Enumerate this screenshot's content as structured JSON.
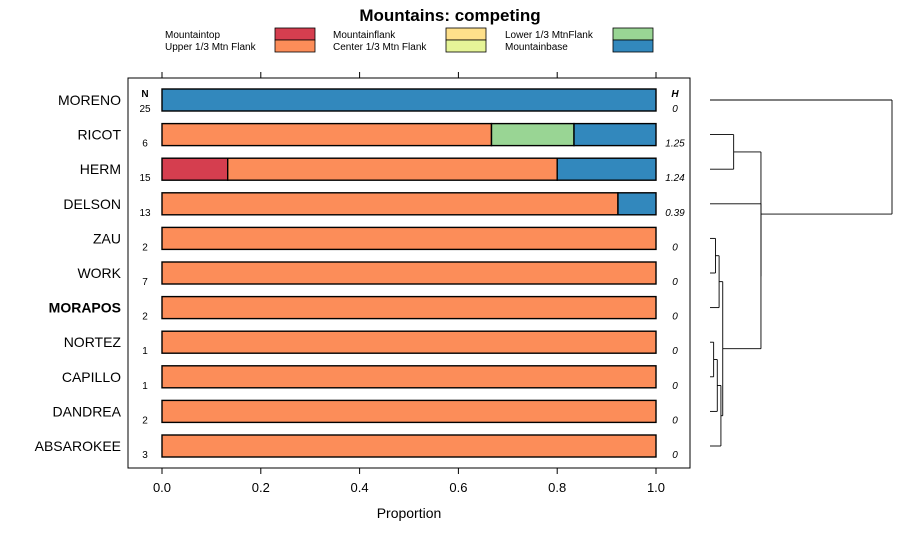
{
  "chart_data": {
    "type": "stacked-bar-horizontal",
    "title": "Mountains: competing",
    "xlabel": "Proportion",
    "xlim": [
      0,
      1
    ],
    "xticks": [
      "0.0",
      "0.2",
      "0.4",
      "0.6",
      "0.8",
      "1.0"
    ],
    "n_header": "N",
    "h_header": "H",
    "legend": [
      {
        "name": "Mountaintop",
        "color": "#d53e4f"
      },
      {
        "name": "Upper 1/3 Mtn Flank",
        "color": "#fc8d59"
      },
      {
        "name": "Mountainflank",
        "color": "#fee08b"
      },
      {
        "name": "Center 1/3 Mtn Flank",
        "color": "#e6f598"
      },
      {
        "name": "Lower 1/3 MtnFlank",
        "color": "#99d594"
      },
      {
        "name": "Mountainbase",
        "color": "#3288bd"
      }
    ],
    "rows": [
      {
        "label": "MORENO",
        "n": "25",
        "h": "0",
        "bold": false,
        "segments": [
          {
            "cat": "Mountainbase",
            "value": 1.0
          }
        ]
      },
      {
        "label": "RICOT",
        "n": "6",
        "h": "1.25",
        "bold": false,
        "segments": [
          {
            "cat": "Upper 1/3 Mtn Flank",
            "value": 0.667
          },
          {
            "cat": "Lower 1/3 MtnFlank",
            "value": 0.167
          },
          {
            "cat": "Mountainbase",
            "value": 0.166
          }
        ]
      },
      {
        "label": "HERM",
        "n": "15",
        "h": "1.24",
        "bold": false,
        "segments": [
          {
            "cat": "Mountaintop",
            "value": 0.133
          },
          {
            "cat": "Upper 1/3 Mtn Flank",
            "value": 0.667
          },
          {
            "cat": "Mountainbase",
            "value": 0.2
          }
        ]
      },
      {
        "label": "DELSON",
        "n": "13",
        "h": "0.39",
        "bold": false,
        "segments": [
          {
            "cat": "Upper 1/3 Mtn Flank",
            "value": 0.923
          },
          {
            "cat": "Mountainbase",
            "value": 0.077
          }
        ]
      },
      {
        "label": "ZAU",
        "n": "2",
        "h": "0",
        "bold": false,
        "segments": [
          {
            "cat": "Upper 1/3 Mtn Flank",
            "value": 1.0
          }
        ]
      },
      {
        "label": "WORK",
        "n": "7",
        "h": "0",
        "bold": false,
        "segments": [
          {
            "cat": "Upper 1/3 Mtn Flank",
            "value": 1.0
          }
        ]
      },
      {
        "label": "MORAPOS",
        "n": "2",
        "h": "0",
        "bold": true,
        "segments": [
          {
            "cat": "Upper 1/3 Mtn Flank",
            "value": 1.0
          }
        ]
      },
      {
        "label": "NORTEZ",
        "n": "1",
        "h": "0",
        "bold": false,
        "segments": [
          {
            "cat": "Upper 1/3 Mtn Flank",
            "value": 1.0
          }
        ]
      },
      {
        "label": "CAPILLO",
        "n": "1",
        "h": "0",
        "bold": false,
        "segments": [
          {
            "cat": "Upper 1/3 Mtn Flank",
            "value": 1.0
          }
        ]
      },
      {
        "label": "DANDREA",
        "n": "2",
        "h": "0",
        "bold": false,
        "segments": [
          {
            "cat": "Upper 1/3 Mtn Flank",
            "value": 1.0
          }
        ]
      },
      {
        "label": "ABSAROKEE",
        "n": "3",
        "h": "0",
        "bold": false,
        "segments": [
          {
            "cat": "Upper 1/3 Mtn Flank",
            "value": 1.0
          }
        ]
      }
    ],
    "dendrogram": {
      "leaves": [
        "MORENO",
        "RICOT",
        "HERM",
        "DELSON",
        "ZAU",
        "WORK",
        "MORAPOS",
        "NORTEZ",
        "CAPILLO",
        "DANDREA",
        "ABSAROKEE"
      ],
      "merges": [
        {
          "a": "NORTEZ",
          "b": "CAPILLO",
          "height": 0.02
        },
        {
          "a": "ZAU",
          "b": "WORK",
          "height": 0.03
        },
        {
          "a": "NORTEZ+CAPILLO",
          "b": "DANDREA",
          "height": 0.04
        },
        {
          "a": "ZAU+WORK",
          "b": "MORAPOS",
          "height": 0.05
        },
        {
          "a": "NORTEZ+CAPILLO+DANDREA",
          "b": "ABSAROKEE",
          "height": 0.06
        },
        {
          "a": "ZAU+WORK+MORAPOS",
          "b": "NORTEZ+CAPILLO+DANDREA+ABSAROKEE",
          "height": 0.07
        },
        {
          "a": "RICOT",
          "b": "HERM",
          "height": 0.13
        },
        {
          "a": "DELSON",
          "b": "ZAU..ABSAROKEE",
          "height": 0.28
        },
        {
          "a": "RICOT+HERM",
          "b": "DELSON..ABSAROKEE",
          "height": 0.28
        },
        {
          "a": "MORENO",
          "b": "RICOT..ABSAROKEE",
          "height": 1.0
        }
      ]
    }
  }
}
